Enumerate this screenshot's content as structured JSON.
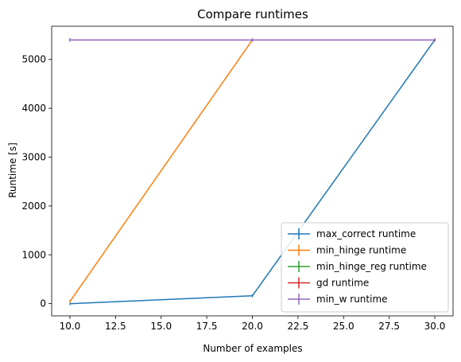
{
  "chart_data": {
    "type": "line",
    "title": "Compare runtimes",
    "xlabel": "Number of examples",
    "ylabel": "Runtime [s]",
    "xlim": [
      9.0,
      31.0
    ],
    "ylim": [
      -250,
      5680
    ],
    "x_ticks": [
      10.0,
      12.5,
      15.0,
      17.5,
      20.0,
      22.5,
      25.0,
      27.5,
      30.0
    ],
    "x_tick_labels": [
      "10.0",
      "12.5",
      "15.0",
      "17.5",
      "20.0",
      "22.5",
      "25.0",
      "27.5",
      "30.0"
    ],
    "y_ticks": [
      0,
      1000,
      2000,
      3000,
      4000,
      5000
    ],
    "y_tick_labels": [
      "0",
      "1000",
      "2000",
      "3000",
      "4000",
      "5000"
    ],
    "grid": false,
    "legend_position": "lower-right",
    "legend_style": "errorbar",
    "series": [
      {
        "name": "max_correct runtime",
        "color": "#1f77b4",
        "x": [
          10,
          20,
          30
        ],
        "y": [
          0,
          160,
          5400
        ]
      },
      {
        "name": "min_hinge runtime",
        "color": "#ff7f0e",
        "x": [
          10,
          20,
          30
        ],
        "y": [
          45,
          5400,
          5400
        ]
      },
      {
        "name": "min_hinge_reg runtime",
        "color": "#2ca02c",
        "x": [
          10,
          20,
          30
        ],
        "y": [
          5400,
          5400,
          5400
        ]
      },
      {
        "name": "gd runtime",
        "color": "#d62728",
        "x": [
          10,
          20,
          30
        ],
        "y": [
          5400,
          5400,
          5400
        ]
      },
      {
        "name": "min_w runtime",
        "color": "#9467bd",
        "x": [
          10,
          20,
          30
        ],
        "y": [
          5400,
          5400,
          5400
        ]
      }
    ]
  }
}
